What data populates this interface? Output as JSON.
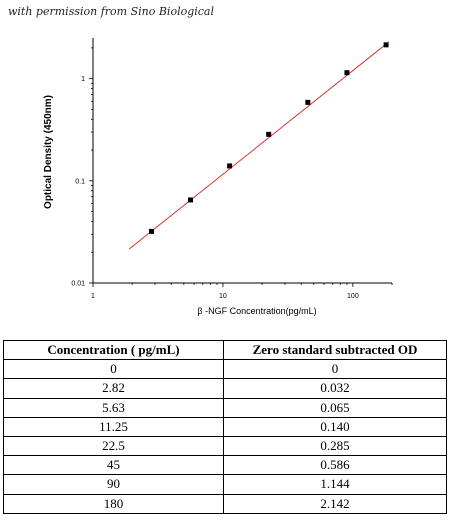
{
  "credit": "with permission from Sino Biological",
  "chart_data": {
    "type": "scatter",
    "xscale": "log",
    "yscale": "log",
    "xlim": [
      1,
      200
    ],
    "ylim": [
      0.01,
      2.5
    ],
    "xlabel": "β -NGF  Concentration(pg/mL)",
    "ylabel": "Optical Density (450nm)",
    "x_ticks": [
      1,
      10,
      100
    ],
    "x_tick_labels": [
      "1",
      "10",
      "100"
    ],
    "y_ticks": [
      0.01,
      0.1,
      1
    ],
    "y_tick_labels": [
      "0.01",
      "0.1",
      "1"
    ],
    "grid": false,
    "series": [
      {
        "x": [
          2.82,
          5.63,
          11.25,
          22.5,
          45,
          90,
          180
        ],
        "y": [
          0.032,
          0.065,
          0.14,
          0.285,
          0.586,
          1.144,
          2.142
        ],
        "marker": "square",
        "color": "#000000"
      }
    ],
    "fit_line": {
      "x": [
        1.9,
        190
      ],
      "y": [
        0.0215,
        2.3
      ],
      "color": "#e02020"
    }
  },
  "table": {
    "headers": [
      "Concentration ( pg/mL)",
      "Zero standard subtracted OD"
    ],
    "rows": [
      [
        "0",
        "0"
      ],
      [
        "2.82",
        "0.032"
      ],
      [
        "5.63",
        "0.065"
      ],
      [
        "11.25",
        "0.140"
      ],
      [
        "22.5",
        "0.285"
      ],
      [
        "45",
        "0.586"
      ],
      [
        "90",
        "1.144"
      ],
      [
        "180",
        "2.142"
      ]
    ]
  }
}
